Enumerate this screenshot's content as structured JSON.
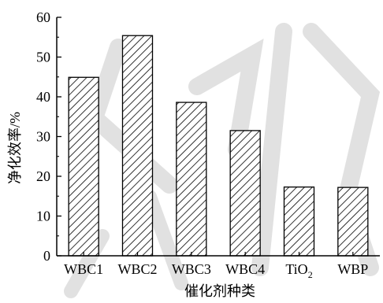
{
  "chart_data": {
    "type": "bar",
    "categories": [
      "WBC1",
      "WBC2",
      "WBC3",
      "WBC4",
      "TiO2",
      "WBP"
    ],
    "category_display": [
      {
        "main": "WBC1",
        "sub": ""
      },
      {
        "main": "WBC2",
        "sub": ""
      },
      {
        "main": "WBC3",
        "sub": ""
      },
      {
        "main": "WBC4",
        "sub": ""
      },
      {
        "main": "TiO",
        "sub": "2"
      },
      {
        "main": "WBP",
        "sub": ""
      }
    ],
    "values": [
      44.9,
      55.4,
      38.6,
      31.5,
      17.3,
      17.2
    ],
    "xlabel": "催化剂种类",
    "ylabel": "净化效率/%",
    "ylim": [
      0,
      60
    ],
    "yticks": [
      0,
      10,
      20,
      30,
      40,
      50,
      60
    ],
    "bar_fill": "hatched-diagonal",
    "grid": false,
    "colors": {
      "bar_stroke": "#000000",
      "hatch": "#000000",
      "watermark": "#c9c9c9"
    }
  }
}
